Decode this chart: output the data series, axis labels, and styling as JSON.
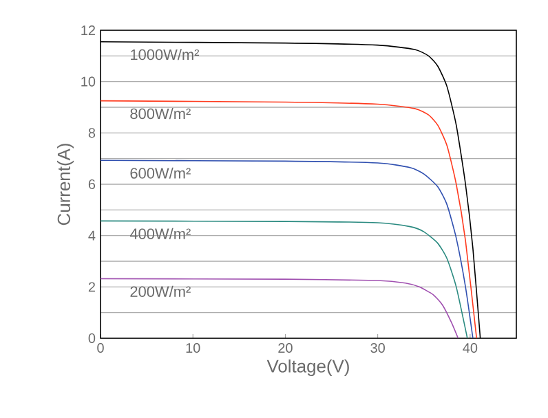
{
  "chart_data": {
    "type": "line",
    "xlabel": "Voltage(V)",
    "ylabel": "Current(A)",
    "xlim": [
      0,
      45
    ],
    "xticks": [
      0,
      10,
      20,
      30,
      40
    ],
    "ylim": [
      0,
      12
    ],
    "yticks": [
      0,
      {
        "value": 1,
        "label": null
      },
      2,
      {
        "value": 3,
        "label": null
      },
      4,
      {
        "value": 5,
        "label": null
      },
      6,
      {
        "value": 7,
        "label": null
      },
      8,
      {
        "value": 9,
        "label": null
      },
      10,
      {
        "value": 11,
        "label": null
      },
      12
    ],
    "grid": "y",
    "legend": false,
    "marker": "none",
    "line_style": "solid",
    "series": [
      {
        "name": "1000W/m²",
        "color": "#000000",
        "x": [
          0,
          20,
          30,
          34,
          35.5,
          36.5,
          37.5,
          38.5,
          39.5,
          40.3,
          41.1
        ],
        "values": [
          11.55,
          11.5,
          11.42,
          11.25,
          11.0,
          10.6,
          9.8,
          8.3,
          6.0,
          3.5,
          0
        ]
      },
      {
        "name": "800W/m²",
        "color": "#ff3b1f",
        "x": [
          0,
          20,
          30,
          34,
          35.5,
          36.5,
          37.5,
          38.5,
          39.5,
          40.7
        ],
        "values": [
          9.25,
          9.2,
          9.12,
          8.95,
          8.7,
          8.3,
          7.5,
          6.0,
          3.8,
          0
        ]
      },
      {
        "name": "600W/m²",
        "color": "#3050b0",
        "x": [
          0,
          20,
          30,
          33.5,
          35,
          36.5,
          37.5,
          38.5,
          39.5,
          40.3
        ],
        "values": [
          6.93,
          6.9,
          6.83,
          6.65,
          6.4,
          5.9,
          5.2,
          3.9,
          2.0,
          0
        ]
      },
      {
        "name": "400W/m²",
        "color": "#2a8a80",
        "x": [
          0,
          20,
          30,
          33.5,
          35,
          36.5,
          37.5,
          38.5,
          39.7
        ],
        "values": [
          4.57,
          4.55,
          4.5,
          4.35,
          4.15,
          3.7,
          3.1,
          2.0,
          0
        ]
      },
      {
        "name": "200W/m²",
        "color": "#a050b0",
        "x": [
          0,
          20,
          30,
          33,
          34.5,
          36,
          37,
          38,
          38.7
        ],
        "values": [
          2.32,
          2.3,
          2.25,
          2.15,
          2.0,
          1.7,
          1.3,
          0.6,
          0
        ]
      }
    ]
  }
}
